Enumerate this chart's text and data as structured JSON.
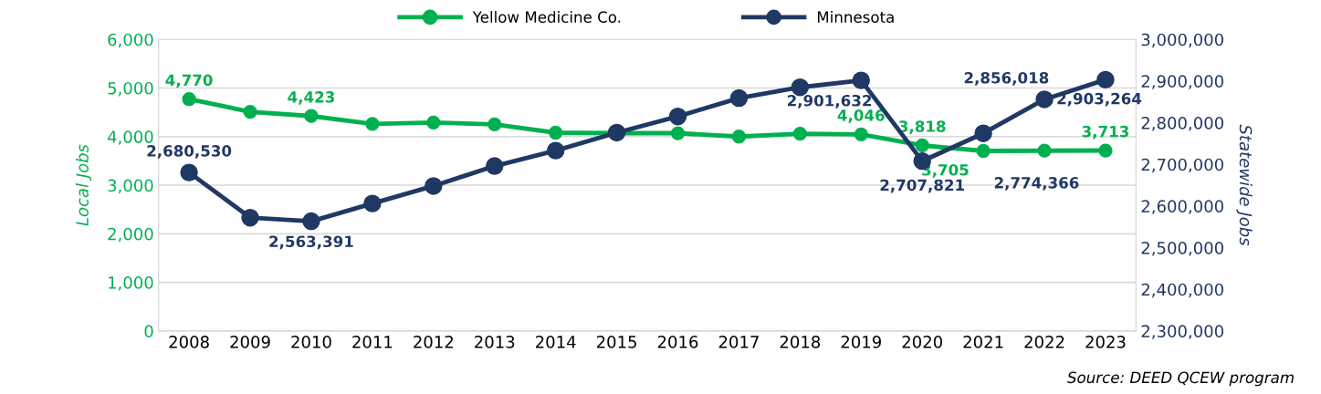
{
  "chart_data": {
    "type": "line",
    "categories": [
      "2008",
      "2009",
      "2010",
      "2011",
      "2012",
      "2013",
      "2014",
      "2015",
      "2016",
      "2017",
      "2018",
      "2019",
      "2020",
      "2021",
      "2022",
      "2023"
    ],
    "series": [
      {
        "name": "Yellow Medicine Co.",
        "color": "#00b050",
        "axis": "y",
        "values": [
          4770,
          4510,
          4423,
          4260,
          4290,
          4250,
          4080,
          4070,
          4070,
          4000,
          4060,
          4046,
          3818,
          3705,
          3710,
          3713
        ],
        "value_labels": [
          "4,770",
          null,
          "4,423",
          null,
          null,
          null,
          null,
          null,
          null,
          null,
          null,
          "4,046",
          "3,818",
          "3,705",
          null,
          "3,713"
        ]
      },
      {
        "name": "Minnesota",
        "color": "#203864",
        "axis": "y2",
        "values": [
          2680530,
          2572000,
          2563391,
          2606000,
          2648000,
          2696000,
          2733000,
          2776000,
          2815000,
          2859000,
          2885000,
          2901632,
          2707821,
          2774366,
          2856018,
          2903264
        ],
        "value_labels": [
          "2,680,530",
          null,
          "2,563,391",
          null,
          null,
          null,
          null,
          null,
          null,
          null,
          null,
          "2,901,632",
          "2,707,821",
          "2,774,366",
          "2,856,018",
          "2,903,264"
        ]
      }
    ],
    "ylabel": "Local Jobs",
    "y2label": "Statewide Jobs",
    "ylim": [
      0,
      6000
    ],
    "yticks": [
      {
        "value": 0,
        "label": "0"
      },
      {
        "value": 1000,
        "label": "1,000"
      },
      {
        "value": 2000,
        "label": "2,000"
      },
      {
        "value": 3000,
        "label": "3,000"
      },
      {
        "value": 4000,
        "label": "4,000"
      },
      {
        "value": 5000,
        "label": "5,000"
      },
      {
        "value": 6000,
        "label": "6,000"
      }
    ],
    "y2lim": [
      2300000,
      3000000
    ],
    "y2ticks": [
      {
        "value": 2300000,
        "label": "2,300,000"
      },
      {
        "value": 2400000,
        "label": "2,400,000"
      },
      {
        "value": 2500000,
        "label": "2,500,000"
      },
      {
        "value": 2600000,
        "label": "2,600,000"
      },
      {
        "value": 2700000,
        "label": "2,700,000"
      },
      {
        "value": 2800000,
        "label": "2,800,000"
      },
      {
        "value": 2900000,
        "label": "2,900,000"
      },
      {
        "value": 3000000,
        "label": "3,000,000"
      }
    ],
    "grid": "y",
    "legend": "top",
    "marker": "circle",
    "line_style": "solid",
    "annotations": [
      "Source: DEED QCEW program"
    ]
  }
}
